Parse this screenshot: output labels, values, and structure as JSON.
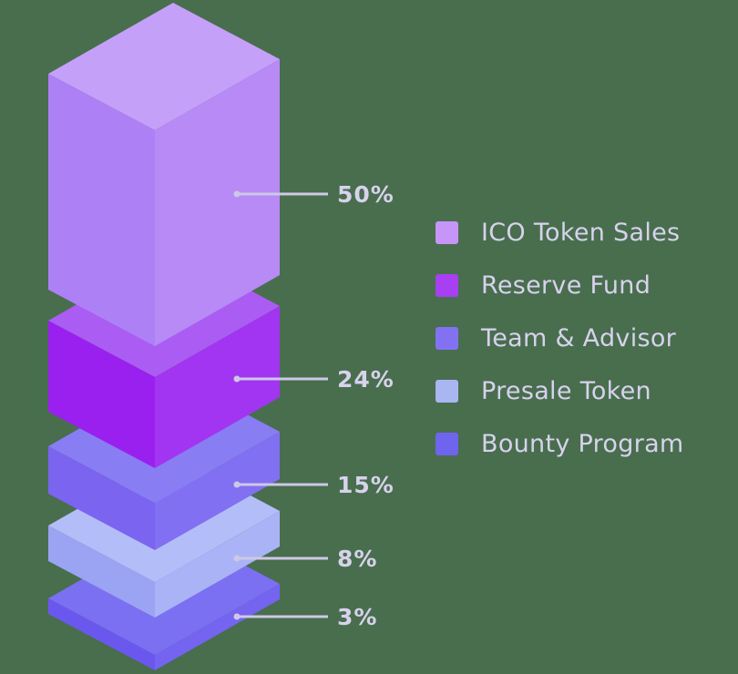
{
  "background_color": "#486E4E",
  "text_color": "#D8D2EC",
  "callout_line_color": "#CEC8E6",
  "chart_data": {
    "type": "bar",
    "variant": "isometric-3d-exploded-stack",
    "title": "",
    "unit": "%",
    "legend_position": "right",
    "grid": false,
    "segments": [
      {
        "label": "ICO Token Sales",
        "value": 50,
        "swatch": "#C795F7",
        "faces": {
          "top": "#C5A0F8",
          "left": "#AE80F5",
          "right": "#B78AF6"
        }
      },
      {
        "label": "Reserve Fund",
        "value": 24,
        "swatch": "#A93FF2",
        "faces": {
          "top": "#AB5CF2",
          "left": "#9A20EF",
          "right": "#A235F1"
        }
      },
      {
        "label": "Team & Advisor",
        "value": 15,
        "swatch": "#8272F2",
        "faces": {
          "top": "#887DF3",
          "left": "#7A64F0",
          "right": "#8170F1"
        }
      },
      {
        "label": "Presale Token",
        "value": 8,
        "swatch": "#A9B6F2",
        "faces": {
          "top": "#B3BEF8",
          "left": "#9AA4F2",
          "right": "#A9B3F6"
        }
      },
      {
        "label": "Bounty Program",
        "value": 3,
        "swatch": "#6F64EE",
        "faces": {
          "top": "#7B70F1",
          "left": "#6A58EE",
          "right": "#7464EF"
        }
      }
    ]
  }
}
